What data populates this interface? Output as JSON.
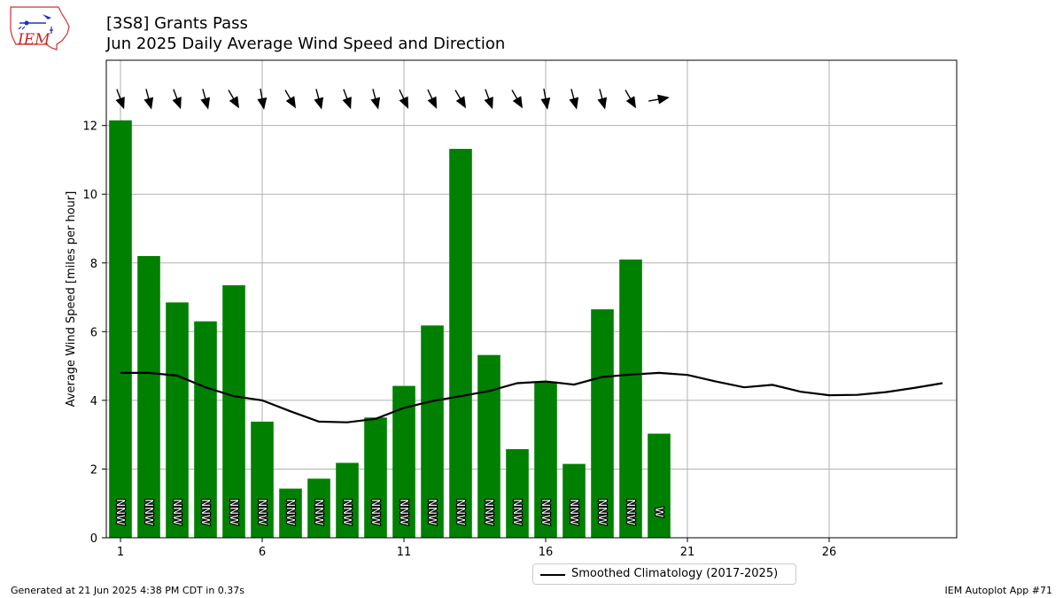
{
  "header": {
    "title_line1": "[3S8] Grants Pass",
    "title_line2": "Jun 2025 Daily Average Wind Speed and Direction"
  },
  "logo": {
    "text": "IEM"
  },
  "footer": {
    "left": "Generated at 21 Jun 2025 4:38 PM CDT in 0.37s",
    "right": "IEM Autoplot App #71"
  },
  "legend": {
    "label": "Smoothed Climatology (2017-2025)"
  },
  "chart_data": {
    "type": "bar",
    "ylabel": "Average Wind Speed [miles per hour]",
    "xlabel": "",
    "xlim": [
      0.5,
      30.5
    ],
    "ylim": [
      0,
      13.9
    ],
    "xticks": [
      1,
      6,
      11,
      16,
      21,
      26
    ],
    "yticks": [
      0,
      2,
      4,
      6,
      8,
      10,
      12
    ],
    "grid": true,
    "legend_position": "below-center",
    "bar_color": "#008000",
    "line_color": "#000000",
    "days": [
      1,
      2,
      3,
      4,
      5,
      6,
      7,
      8,
      9,
      10,
      11,
      12,
      13,
      14,
      15,
      16,
      17,
      18,
      19,
      20
    ],
    "speed": [
      12.15,
      8.2,
      6.85,
      6.3,
      7.35,
      3.38,
      1.43,
      1.72,
      2.18,
      3.5,
      4.42,
      6.18,
      11.32,
      5.32,
      2.58,
      4.55,
      2.15,
      6.65,
      8.1,
      3.03
    ],
    "direction_labels": [
      "NNW",
      "NNW",
      "NNW",
      "NNW",
      "NNW",
      "NNW",
      "NNW",
      "NNW",
      "NNW",
      "NNW",
      "NNW",
      "NNW",
      "NNW",
      "NNW",
      "NNW",
      "NNW",
      "NNW",
      "NNW",
      "NNW",
      "W"
    ],
    "direction_degrees": [
      340,
      345,
      340,
      345,
      330,
      350,
      330,
      345,
      340,
      345,
      335,
      335,
      330,
      340,
      330,
      350,
      345,
      345,
      330,
      260
    ],
    "climatology": {
      "name": "Smoothed Climatology (2017-2025)",
      "x": [
        1,
        2,
        3,
        4,
        5,
        6,
        7,
        8,
        9,
        10,
        11,
        12,
        13,
        14,
        15,
        16,
        17,
        18,
        19,
        20,
        21,
        22,
        23,
        24,
        25,
        26,
        27,
        28,
        29,
        30
      ],
      "y": [
        4.8,
        4.8,
        4.72,
        4.38,
        4.12,
        4.0,
        3.68,
        3.38,
        3.36,
        3.46,
        3.78,
        3.98,
        4.12,
        4.27,
        4.5,
        4.55,
        4.46,
        4.68,
        4.75,
        4.8,
        4.74,
        4.55,
        4.38,
        4.45,
        4.25,
        4.15,
        4.16,
        4.24,
        4.36,
        4.5
      ]
    }
  }
}
